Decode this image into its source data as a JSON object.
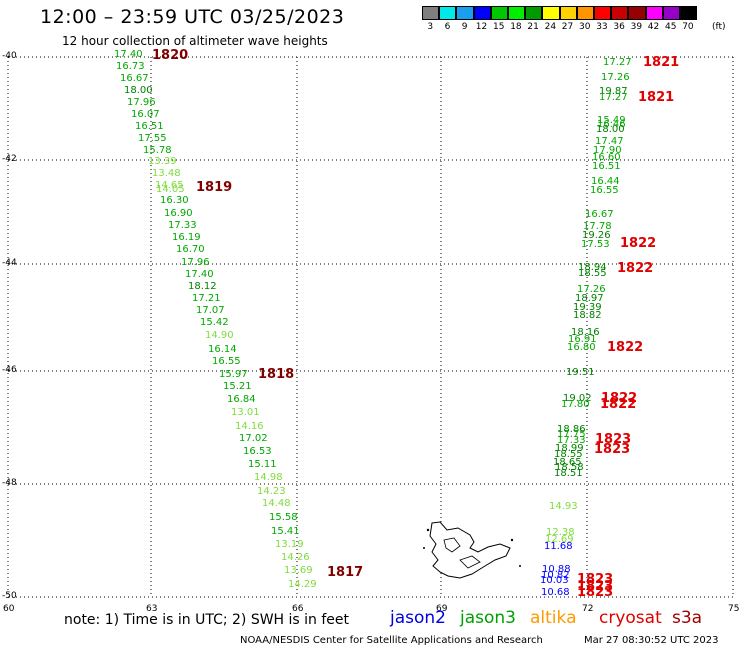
{
  "header": {
    "title": "12:00 – 23:59 UTC 03/25/2023",
    "subtitle": "12 hour collection of altimeter wave heights"
  },
  "colorbar": {
    "unit": "(ft)",
    "labels": [
      "3",
      "6",
      "9",
      "12",
      "15",
      "18",
      "21",
      "24",
      "27",
      "30",
      "33",
      "36",
      "39",
      "42",
      "45",
      "70"
    ],
    "colors": [
      "#7f7f7f",
      "#00e8e8",
      "#1a9ff0",
      "#0000ff",
      "#00c800",
      "#00ee00",
      "#009b00",
      "#ffff00",
      "#ffd200",
      "#ff9600",
      "#ff0000",
      "#c80000",
      "#960000",
      "#ff00ff",
      "#9600c8",
      "#000000"
    ]
  },
  "map": {
    "lat_labels": [
      "-40",
      "-42",
      "-44",
      "-46",
      "-48",
      "-50"
    ],
    "lon_labels": [
      "60",
      "63",
      "66",
      "69",
      "72",
      "75"
    ],
    "left_track": {
      "values": [
        "17.40",
        "16.73",
        "16.67",
        "18.00",
        "17.96",
        "16.07",
        "16.51",
        "17.55",
        "15.78",
        "13.39",
        "13.48",
        "14.65",
        "14.05",
        "16.30",
        "16.90",
        "17.33",
        "16.19",
        "16.70",
        "17.96",
        "17.40",
        "18.12",
        "17.21",
        "17.07",
        "15.42",
        "14.90",
        "16.14",
        "16.55",
        "15.97",
        "15.21",
        "16.84",
        "13.01",
        "14.16",
        "17.02",
        "16.53",
        "15.11",
        "14.98",
        "14.23",
        "14.48",
        "15.58",
        "15.41",
        "13.19",
        "14.26",
        "13.69",
        "14.29"
      ],
      "pass_labels": [
        "1820",
        "1819",
        "1818",
        "1817"
      ]
    },
    "right_track": {
      "values": [
        "17.27",
        "17.26",
        "19.87",
        "17.27",
        "15.49",
        "16.46",
        "18.00",
        "17.47",
        "17.90",
        "16.60",
        "16.51",
        "16.44",
        "16.55",
        "16.67",
        "17.78",
        "19.26",
        "17.53",
        "18.94",
        "18.55",
        "17.26",
        "18.97",
        "19.39",
        "18.82",
        "18.16",
        "16.91",
        "16.80",
        "19.51",
        "19.02",
        "17.80",
        "18.86",
        "17.75",
        "17.33",
        "18.99",
        "18.55",
        "18.65",
        "18.58",
        "18.51",
        "14.93",
        "12.38",
        "12.69",
        "11.68",
        "10.88",
        "10.82",
        "10.03",
        "10.68"
      ],
      "pass_labels": [
        "1821",
        "1821",
        "1822",
        "1822",
        "1822",
        "1822",
        "1822",
        "1823",
        "1823",
        "1823",
        "1823",
        "1823"
      ]
    }
  },
  "legend": {
    "note": "note:  1) Time is in UTC; 2) SWH is in feet",
    "missions": [
      {
        "name": "jason2",
        "color": "#0000e0"
      },
      {
        "name": "jason3",
        "color": "#00a000"
      },
      {
        "name": "altika",
        "color": "#ff9900"
      },
      {
        "name": "cryosat",
        "color": "#e00000"
      },
      {
        "name": "s3a",
        "color": "#a00000"
      }
    ]
  },
  "footer": {
    "credit": "NOAA/NESDIS Center for Satellite Applications and Research",
    "timestamp": "Mar 27 08:30:52 UTC 2023"
  }
}
